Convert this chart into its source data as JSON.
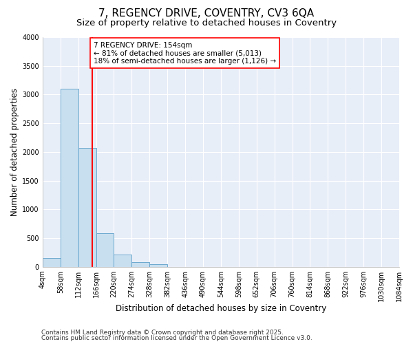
{
  "title1": "7, REGENCY DRIVE, COVENTRY, CV3 6QA",
  "title2": "Size of property relative to detached houses in Coventry",
  "xlabel": "Distribution of detached houses by size in Coventry",
  "ylabel": "Number of detached properties",
  "bin_edges": [
    4,
    58,
    112,
    166,
    220,
    274,
    328,
    382,
    436,
    490,
    544,
    598,
    652,
    706,
    760,
    814,
    868,
    922,
    976,
    1030,
    1084
  ],
  "bar_heights": [
    150,
    3100,
    2075,
    580,
    210,
    80,
    45,
    0,
    0,
    0,
    0,
    0,
    0,
    0,
    0,
    0,
    0,
    0,
    0,
    0
  ],
  "bar_color": "#c8dff0",
  "bar_edge_color": "#5a9ec8",
  "vline_x": 154,
  "vline_color": "red",
  "annotation_text": "7 REGENCY DRIVE: 154sqm\n← 81% of detached houses are smaller (5,013)\n18% of semi-detached houses are larger (1,126) →",
  "annotation_box_color": "white",
  "annotation_box_edge": "red",
  "ylim": [
    0,
    4000
  ],
  "yticks": [
    0,
    500,
    1000,
    1500,
    2000,
    2500,
    3000,
    3500,
    4000
  ],
  "bg_color": "#ffffff",
  "plot_bg": "#e8eef8",
  "grid_color": "#ffffff",
  "footer1": "Contains HM Land Registry data © Crown copyright and database right 2025.",
  "footer2": "Contains public sector information licensed under the Open Government Licence v3.0.",
  "title_fontsize": 11,
  "subtitle_fontsize": 9.5,
  "tick_fontsize": 7,
  "xlabel_fontsize": 8.5,
  "ylabel_fontsize": 8.5,
  "footer_fontsize": 6.5
}
